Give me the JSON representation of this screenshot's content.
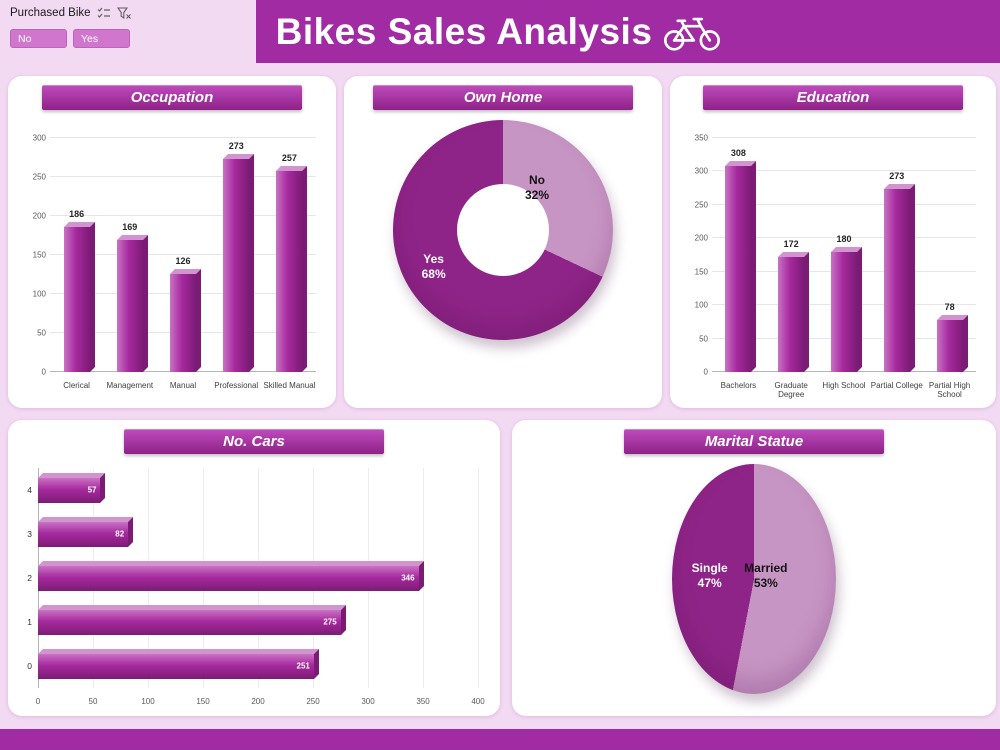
{
  "colors": {
    "header": "#a02ba2",
    "background": "#f3daf3",
    "card": "#ffffff",
    "bar_main": "#a62a9e",
    "bar_light": "#c873c3",
    "bar_dark": "#7c1b75",
    "bar_top": "#d294ce",
    "banner_top": "#bf4cbd",
    "banner_bottom": "#8e2187",
    "pie_dark": "#8e2487",
    "pie_light": "#c795c4",
    "slicer_button": "#d076cc"
  },
  "header": {
    "title": "Bikes Sales Analysis"
  },
  "slicer": {
    "label": "Purchased Bike",
    "options": [
      "No",
      "Yes"
    ]
  },
  "icons": {
    "bicycle": "bicycle-icon",
    "multi_select": "multi-select-icon",
    "clear_filter": "clear-filter-icon"
  },
  "chart_data": [
    {
      "id": "occupation",
      "type": "bar",
      "title": "Occupation",
      "categories": [
        "Clerical",
        "Management",
        "Manual",
        "Professional",
        "Skilled Manual"
      ],
      "values": [
        186,
        169,
        126,
        273,
        257
      ],
      "xlabel": "",
      "ylabel": "",
      "ylim": [
        0,
        300
      ],
      "ytick_step": 50,
      "grid": true,
      "legend": false
    },
    {
      "id": "own-home",
      "type": "pie",
      "donut": true,
      "title": "Own Home",
      "categories": [
        "No",
        "Yes"
      ],
      "values": [
        32,
        68
      ],
      "pct_labels": [
        "32%",
        "68%"
      ],
      "legend": false
    },
    {
      "id": "education",
      "type": "bar",
      "title": "Education",
      "categories": [
        "Bachelors",
        "Graduate Degree",
        "High School",
        "Partial College",
        "Partial High School"
      ],
      "values": [
        308,
        172,
        180,
        273,
        78
      ],
      "xlabel": "",
      "ylabel": "",
      "ylim": [
        0,
        350
      ],
      "ytick_step": 50,
      "grid": true,
      "legend": false
    },
    {
      "id": "no-cars",
      "type": "bar",
      "orientation": "horizontal",
      "title": "No. Cars",
      "categories": [
        "4",
        "3",
        "2",
        "1",
        "0"
      ],
      "values": [
        57,
        82,
        346,
        275,
        251
      ],
      "xlabel": "",
      "ylabel": "",
      "xlim": [
        0,
        400
      ],
      "xtick_step": 50,
      "grid": true,
      "legend": false
    },
    {
      "id": "marital",
      "type": "pie",
      "title": "Marital Statue",
      "categories": [
        "Married",
        "Single"
      ],
      "values": [
        53,
        47
      ],
      "pct_labels": [
        "53%",
        "47%"
      ],
      "legend": false
    }
  ]
}
